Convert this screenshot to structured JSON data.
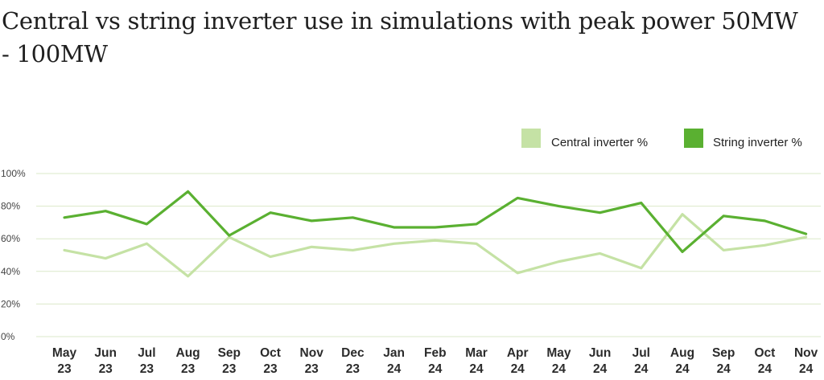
{
  "chart_data": {
    "type": "line",
    "title": "Central vs string inverter use in simulations with peak power 50MW - 100MW",
    "xlabel": "",
    "ylabel": "",
    "categories": [
      [
        "May",
        "23"
      ],
      [
        "Jun",
        "23"
      ],
      [
        "Jul",
        "23"
      ],
      [
        "Aug",
        "23"
      ],
      [
        "Sep",
        "23"
      ],
      [
        "Oct",
        "23"
      ],
      [
        "Nov",
        "23"
      ],
      [
        "Dec",
        "23"
      ],
      [
        "Jan",
        "24"
      ],
      [
        "Feb",
        "24"
      ],
      [
        "Mar",
        "24"
      ],
      [
        "Apr",
        "24"
      ],
      [
        "May",
        "24"
      ],
      [
        "Jun",
        "24"
      ],
      [
        "Jul",
        "24"
      ],
      [
        "Aug",
        "24"
      ],
      [
        "Sep",
        "24"
      ],
      [
        "Oct",
        "24"
      ],
      [
        "Nov",
        "24"
      ]
    ],
    "ylim": [
      0,
      100
    ],
    "yticks": [
      "0%",
      "20%",
      "40%",
      "60%",
      "80%",
      "100%"
    ],
    "grid": true,
    "legend_position": "top-right",
    "series": [
      {
        "name": "Central inverter %",
        "color": "#c5e2a5",
        "values": [
          53,
          48,
          57,
          37,
          61,
          49,
          55,
          53,
          57,
          59,
          57,
          39,
          46,
          51,
          42,
          75,
          53,
          56,
          61
        ]
      },
      {
        "name": "String inverter %",
        "color": "#5ab031",
        "values": [
          73,
          77,
          69,
          89,
          62,
          76,
          71,
          73,
          67,
          67,
          69,
          85,
          80,
          76,
          82,
          52,
          74,
          71,
          63
        ]
      }
    ]
  }
}
